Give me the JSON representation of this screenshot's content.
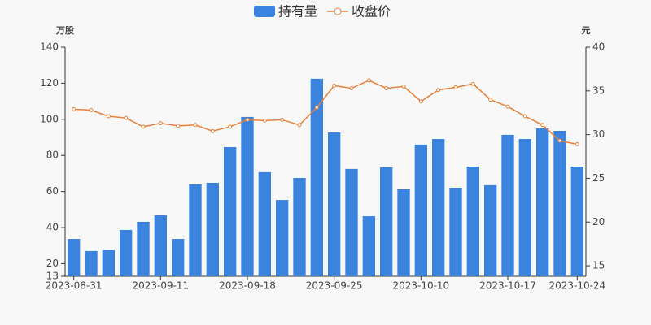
{
  "chart_data": {
    "type": "bar-line",
    "y_axis_name": "万股",
    "y2_axis_name": "元",
    "categories": [
      "2023-08-31",
      null,
      null,
      null,
      null,
      "2023-09-11",
      null,
      null,
      null,
      null,
      "2023-09-18",
      null,
      null,
      null,
      null,
      "2023-09-25",
      null,
      null,
      null,
      null,
      "2023-10-10",
      null,
      null,
      null,
      null,
      "2023-10-17",
      null,
      null,
      null,
      "2023-10-24"
    ],
    "series": [
      {
        "name": "持有量",
        "type": "bar",
        "color": "#3a84e0",
        "values": [
          33.7,
          27,
          27.4,
          38.7,
          43.2,
          46.8,
          33.7,
          63.9,
          64.8,
          84.6,
          101.3,
          70.7,
          55.3,
          67.5,
          122.5,
          92.7,
          72.5,
          46.3,
          73.4,
          61.2,
          86,
          89.1,
          62.1,
          73.8,
          63.5,
          91.4,
          89.1,
          95,
          93.6,
          73.8
        ]
      },
      {
        "name": "收盘价",
        "type": "line",
        "axis": "y2",
        "color": "#e8803a",
        "values": [
          32.9,
          32.8,
          32.1,
          31.9,
          30.9,
          31.3,
          31.0,
          31.1,
          30.4,
          30.9,
          31.7,
          31.6,
          31.7,
          31.1,
          33.1,
          35.6,
          35.3,
          36.2,
          35.3,
          35.5,
          33.8,
          35.1,
          35.4,
          35.8,
          34.0,
          33.2,
          32.1,
          31.1,
          29.3,
          28.9
        ]
      }
    ],
    "ylim": [
      13,
      140
    ],
    "yticks": [
      13,
      20,
      40,
      60,
      80,
      100,
      120,
      140
    ],
    "y2lim": [
      13.8,
      40
    ],
    "y2ticks": [
      15,
      20,
      25,
      30,
      35,
      40
    ],
    "grid": false,
    "legend": "top"
  }
}
